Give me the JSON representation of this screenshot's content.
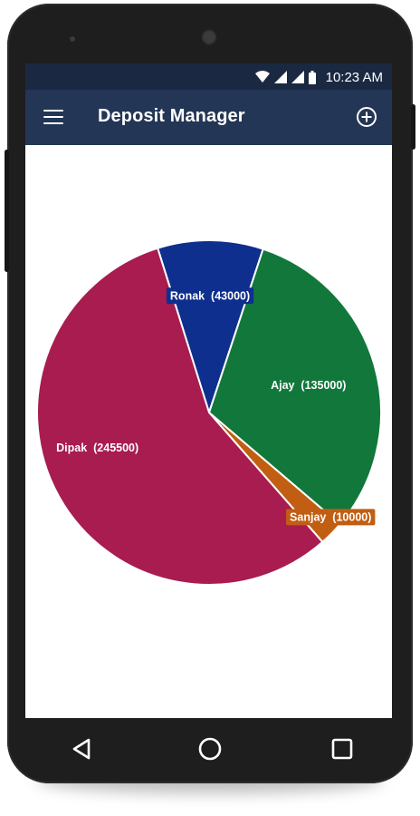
{
  "status_bar": {
    "time": "10:23 AM",
    "icons": [
      "wifi-icon",
      "cell-signal-icon",
      "cell-signal-icon",
      "battery-icon"
    ]
  },
  "app_bar": {
    "title": "Deposit Manager",
    "menu_icon": "menu-icon",
    "action_icon": "add-circle-icon"
  },
  "chart_data": {
    "type": "pie",
    "slices": [
      {
        "label": "Ronak  (43000)",
        "name": "Ronak",
        "value": 43000,
        "color": "#0f2f8e"
      },
      {
        "label": "Ajay  (135000)",
        "name": "Ajay",
        "value": 135000,
        "color": "#12773b"
      },
      {
        "label": "Sanjay  (10000)",
        "name": "Sanjay",
        "value": 10000,
        "color": "#c15e12"
      },
      {
        "label": "Dipak  (245500)",
        "name": "Dipak",
        "value": 245500,
        "color": "#a81c50"
      }
    ]
  },
  "nav_bar": {
    "buttons": [
      "back-icon",
      "home-icon",
      "recents-icon"
    ]
  },
  "colors": {
    "status_bar": "#1a2941",
    "app_bar": "#233655"
  }
}
